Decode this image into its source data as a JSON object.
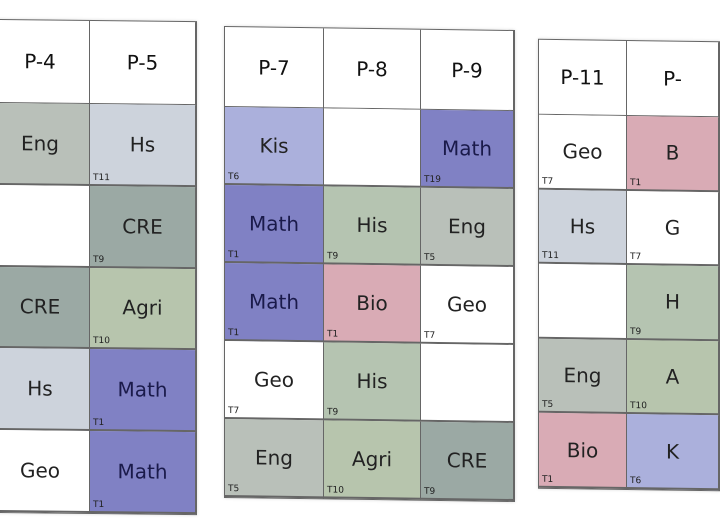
{
  "colors": {
    "Eng": "#b9c0b9",
    "Hs": "#cdd3dc",
    "CRE": "#9ba9a4",
    "Agri": "#b7c5ad",
    "Math": "#8081c4",
    "Kis": "#abb0dc",
    "His": "#b5c4b1",
    "Bio": "#d9abb5",
    "Geo": "#ffffff",
    "empty": "#ffffff"
  },
  "panels": [
    {
      "headers": [
        "P-4",
        "P-5"
      ],
      "rows": [
        [
          {
            "subject": "Eng",
            "teacher": ""
          },
          {
            "subject": "Hs",
            "teacher": "T11"
          }
        ],
        [
          {
            "subject": "",
            "teacher": ""
          },
          {
            "subject": "CRE",
            "teacher": "T9"
          }
        ],
        [
          {
            "subject": "CRE",
            "teacher": ""
          },
          {
            "subject": "Agri",
            "teacher": "T10"
          }
        ],
        [
          {
            "subject": "Hs",
            "teacher": ""
          },
          {
            "subject": "Math",
            "teacher": "T1"
          }
        ],
        [
          {
            "subject": "Geo",
            "teacher": ""
          },
          {
            "subject": "Math",
            "teacher": "T1"
          }
        ]
      ]
    },
    {
      "headers": [
        "P-7",
        "P-8",
        "P-9"
      ],
      "rows": [
        [
          {
            "subject": "Kis",
            "teacher": "T6"
          },
          {
            "subject": "",
            "teacher": ""
          },
          {
            "subject": "Math",
            "teacher": "T19"
          }
        ],
        [
          {
            "subject": "Math",
            "teacher": "T1"
          },
          {
            "subject": "His",
            "teacher": "T9"
          },
          {
            "subject": "Eng",
            "teacher": "T5"
          }
        ],
        [
          {
            "subject": "Math",
            "teacher": "T1"
          },
          {
            "subject": "Bio",
            "teacher": "T1"
          },
          {
            "subject": "Geo",
            "teacher": "T7"
          }
        ],
        [
          {
            "subject": "Geo",
            "teacher": "T7"
          },
          {
            "subject": "His",
            "teacher": "T9"
          },
          {
            "subject": "",
            "teacher": ""
          }
        ],
        [
          {
            "subject": "Eng",
            "teacher": "T5"
          },
          {
            "subject": "Agri",
            "teacher": "T10"
          },
          {
            "subject": "CRE",
            "teacher": "T9"
          }
        ]
      ]
    },
    {
      "headers": [
        "P-11",
        "P-"
      ],
      "rows": [
        [
          {
            "subject": "Geo",
            "teacher": "T7"
          },
          {
            "subject": "B",
            "teacher": "T1",
            "color": "Bio"
          }
        ],
        [
          {
            "subject": "Hs",
            "teacher": "T11"
          },
          {
            "subject": "G",
            "teacher": "T7",
            "color": "Geo"
          }
        ],
        [
          {
            "subject": "",
            "teacher": ""
          },
          {
            "subject": "H",
            "teacher": "T9",
            "color": "His"
          }
        ],
        [
          {
            "subject": "Eng",
            "teacher": "T5"
          },
          {
            "subject": "A",
            "teacher": "T10",
            "color": "Agri"
          }
        ],
        [
          {
            "subject": "Bio",
            "teacher": "T1"
          },
          {
            "subject": "K",
            "teacher": "T6",
            "color": "Kis"
          }
        ]
      ]
    }
  ]
}
